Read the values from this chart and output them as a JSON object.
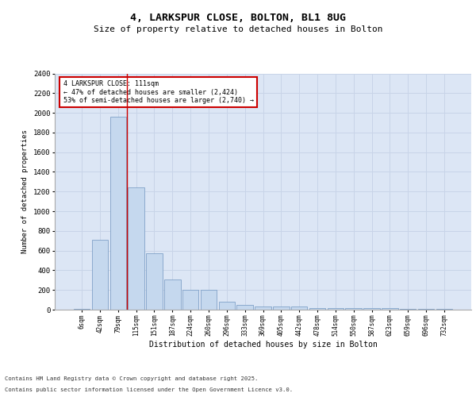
{
  "title_line1": "4, LARKSPUR CLOSE, BOLTON, BL1 8UG",
  "title_line2": "Size of property relative to detached houses in Bolton",
  "xlabel": "Distribution of detached houses by size in Bolton",
  "ylabel": "Number of detached properties",
  "categories": [
    "6sqm",
    "42sqm",
    "79sqm",
    "115sqm",
    "151sqm",
    "187sqm",
    "224sqm",
    "260sqm",
    "296sqm",
    "333sqm",
    "369sqm",
    "405sqm",
    "442sqm",
    "478sqm",
    "514sqm",
    "550sqm",
    "587sqm",
    "623sqm",
    "659sqm",
    "696sqm",
    "732sqm"
  ],
  "values": [
    10,
    710,
    1960,
    1240,
    575,
    305,
    200,
    200,
    80,
    50,
    35,
    35,
    35,
    20,
    20,
    20,
    20,
    15,
    5,
    5,
    5
  ],
  "bar_color": "#c5d8ee",
  "bar_edge_color": "#7096c0",
  "grid_color": "#c8d4e8",
  "bg_color": "#dce6f5",
  "vline_color": "#cc0000",
  "vline_x_index": 2.5,
  "annotation_text": "4 LARKSPUR CLOSE: 111sqm\n← 47% of detached houses are smaller (2,424)\n53% of semi-detached houses are larger (2,740) →",
  "annotation_box_color": "#cc0000",
  "footer_line1": "Contains HM Land Registry data © Crown copyright and database right 2025.",
  "footer_line2": "Contains public sector information licensed under the Open Government Licence v3.0.",
  "ylim": [
    0,
    2400
  ],
  "yticks": [
    0,
    200,
    400,
    600,
    800,
    1000,
    1200,
    1400,
    1600,
    1800,
    2000,
    2200,
    2400
  ],
  "fig_width": 6.0,
  "fig_height": 5.0,
  "dpi": 100
}
